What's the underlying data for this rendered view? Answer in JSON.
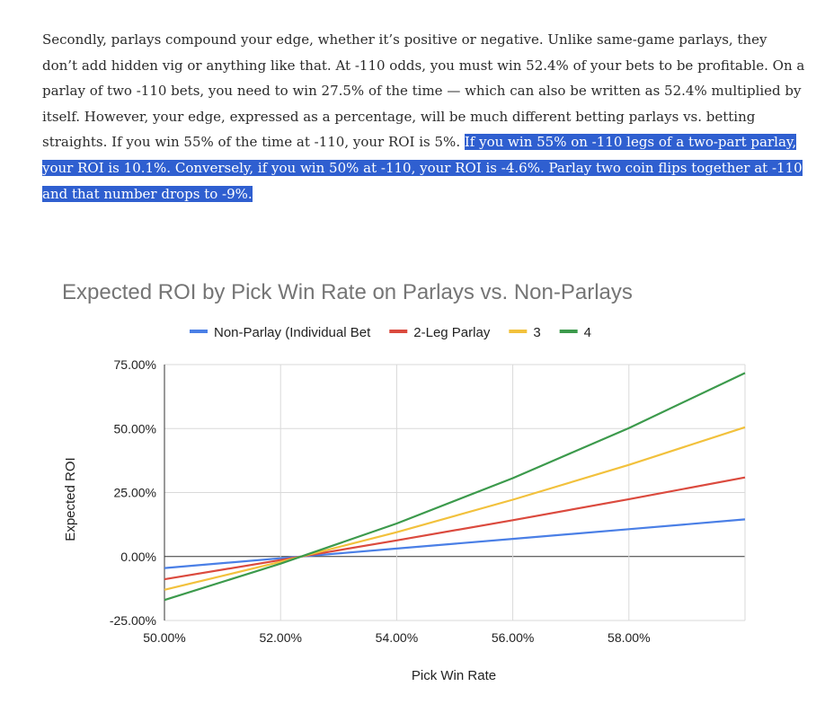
{
  "article": {
    "text_plain": "Secondly, parlays compound your edge, whether it’s positive or negative. Unlike same-game parlays, they don’t add hidden vig or anything like that. At -110 odds, you must win 52.4% of your bets to be profitable. On a parlay of two -110 bets, you need to win 27.5% of the time — which can also be written as 52.4% multiplied by itself. However, your edge, expressed as a percentage, will be much different betting parlays vs. betting straights. If you win 55% of the time at -110, your ROI is 5%.",
    "text_highlighted": "If you win 55% on -110 legs of a two-part parlay, your ROI is 10.1%. Conversely, if you win 50% at -110, your ROI is -4.6%. Parlay two coin flips together at -110 and that number drops to -9%.",
    "highlight_color": "#2f5fd0"
  },
  "chart_data": {
    "type": "line",
    "title": "Expected ROI by Pick Win Rate on Parlays vs. Non-Parlays",
    "xlabel": "Pick Win Rate",
    "ylabel": "Expected ROI",
    "xlim": [
      0.5,
      0.6
    ],
    "ylim": [
      -0.25,
      0.75
    ],
    "x_ticks": [
      "50.00%",
      "52.00%",
      "54.00%",
      "56.00%",
      "58.00%"
    ],
    "y_ticks": [
      "75.00%",
      "50.00%",
      "25.00%",
      "0.00%",
      "-25.00%"
    ],
    "grid": true,
    "legend_position": "top",
    "x": [
      0.5,
      0.52,
      0.54,
      0.56,
      0.58,
      0.6
    ],
    "series": [
      {
        "name": "Non-Parlay (Individual Bet",
        "color": "#4a7fe6",
        "values": [
          -0.045,
          -0.007,
          0.031,
          0.069,
          0.107,
          0.145
        ]
      },
      {
        "name": "2-Leg Parlay",
        "color": "#db4a3e",
        "values": [
          -0.089,
          -0.014,
          0.063,
          0.142,
          0.224,
          0.309
        ]
      },
      {
        "name": "3",
        "color": "#f2c13c",
        "values": [
          -0.13,
          -0.021,
          0.095,
          0.222,
          0.358,
          0.505
        ]
      },
      {
        "name": "4",
        "color": "#3c9a4c",
        "values": [
          -0.17,
          -0.028,
          0.129,
          0.306,
          0.502,
          0.717
        ]
      }
    ]
  }
}
